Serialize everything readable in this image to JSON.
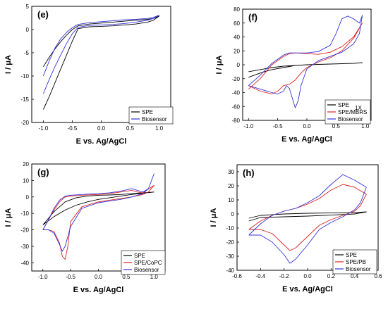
{
  "chart_data": [
    {
      "panel_label": "(e)",
      "type": "line",
      "xlabel": "E vs. Ag/AgCl",
      "ylabel": "I / μA",
      "xlim": [
        -1.2,
        1.2
      ],
      "ylim": [
        -20,
        5
      ],
      "xticks": [
        -1.0,
        -0.5,
        0.0,
        0.5,
        1.0
      ],
      "yticks": [
        -20,
        -15,
        -10,
        -5,
        0,
        5
      ],
      "xtick_labels": [
        "-1.0",
        "-0.5",
        "0.0",
        "0.5",
        "1.0"
      ],
      "ytick_labels": [
        "-20",
        "-15",
        "-10",
        "-5",
        "0",
        "5"
      ],
      "legend_position": "bottom-right",
      "series": [
        {
          "name": "SPE",
          "color": "#000000",
          "x": [
            -1.0,
            -0.9,
            -0.8,
            -0.7,
            -0.6,
            -0.5,
            -0.4,
            -0.2,
            0.0,
            0.2,
            0.4,
            0.6,
            0.8,
            0.9,
            1.0,
            0.9,
            0.8,
            0.6,
            0.4,
            0.2,
            0.0,
            -0.2,
            -0.4,
            -0.5,
            -0.6,
            -0.7,
            -0.8,
            -0.9,
            -1.0
          ],
          "y": [
            -17.2,
            -14.5,
            -11.5,
            -8.5,
            -5.5,
            -2.5,
            0.2,
            0.6,
            0.7,
            0.8,
            1.0,
            1.2,
            1.6,
            2.0,
            2.9,
            2.4,
            2.2,
            2.0,
            1.8,
            1.6,
            1.4,
            1.2,
            0.8,
            0.0,
            -1.2,
            -2.6,
            -4.2,
            -6.0,
            -8.0
          ]
        },
        {
          "name": "Biosensor",
          "color": "#3333dd",
          "x": [
            -1.0,
            -0.9,
            -0.8,
            -0.7,
            -0.6,
            -0.5,
            -0.4,
            -0.2,
            0.0,
            0.2,
            0.4,
            0.6,
            0.8,
            0.9,
            1.0,
            0.9,
            0.8,
            0.6,
            0.4,
            0.2,
            0.0,
            -0.2,
            -0.4,
            -0.5,
            -0.6,
            -0.7,
            -0.8,
            -0.9,
            -1.0
          ],
          "y": [
            -13.8,
            -10.8,
            -8.0,
            -5.5,
            -3.0,
            -0.9,
            0.5,
            0.9,
            1.0,
            1.1,
            1.3,
            1.6,
            2.0,
            2.4,
            3.1,
            2.6,
            2.4,
            2.2,
            2.1,
            1.9,
            1.7,
            1.5,
            1.1,
            0.4,
            -0.6,
            -2.0,
            -4.0,
            -6.8,
            -10.0
          ]
        }
      ]
    },
    {
      "panel_label": "(f)",
      "type": "line",
      "xlabel": "E vs. Ag/AgCl",
      "ylabel": "I / μA",
      "xlim": [
        -1.1,
        1.1
      ],
      "ylim": [
        -80,
        80
      ],
      "xticks": [
        -1.0,
        -0.5,
        0.0,
        0.5,
        1.0
      ],
      "yticks": [
        -80,
        -60,
        -40,
        -20,
        0,
        20,
        40,
        60,
        80
      ],
      "xtick_labels": [
        "-1.0",
        "-0.5",
        "0.0",
        "0.5",
        "1.0"
      ],
      "ytick_labels": [
        "-80",
        "-60",
        "-40",
        "-20",
        "0",
        "20",
        "40",
        "60",
        "80"
      ],
      "legend_position": "bottom-right",
      "annotation": "1X",
      "series": [
        {
          "name": "SPE",
          "color": "#000000",
          "x": [
            -1.0,
            -0.8,
            -0.6,
            -0.4,
            -0.2,
            0.0,
            0.2,
            0.4,
            0.6,
            0.8,
            0.95,
            0.8,
            0.6,
            0.4,
            0.2,
            0.0,
            -0.2,
            -0.4,
            -0.6,
            -0.8,
            -1.0
          ],
          "y": [
            -18,
            -12,
            -7,
            -4,
            -1,
            0,
            0.5,
            1,
            1.5,
            2,
            3,
            2,
            1.5,
            1,
            0.5,
            0,
            -1,
            -2,
            -4,
            -7,
            -10
          ]
        },
        {
          "name": "SPE/MBRS",
          "color": "#dd2222",
          "x": [
            -1.0,
            -0.8,
            -0.6,
            -0.4,
            -0.3,
            -0.2,
            0.0,
            0.2,
            0.4,
            0.6,
            0.8,
            0.95,
            0.8,
            0.6,
            0.4,
            0.2,
            0.0,
            -0.1,
            -0.2,
            -0.3,
            -0.4,
            -0.5,
            -0.6,
            -0.8,
            -1.0
          ],
          "y": [
            -35,
            -20,
            0,
            12,
            16,
            17,
            16,
            15,
            18,
            26,
            40,
            60,
            38,
            20,
            10,
            4,
            -4,
            -12,
            -22,
            -28,
            -30,
            -38,
            -42,
            -38,
            -30
          ]
        },
        {
          "name": "Biosensor",
          "color": "#3333dd",
          "x": [
            -1.0,
            -0.8,
            -0.6,
            -0.4,
            -0.3,
            -0.2,
            0.0,
            0.2,
            0.4,
            0.5,
            0.6,
            0.7,
            0.8,
            0.9,
            0.95,
            0.9,
            0.8,
            0.6,
            0.4,
            0.2,
            0.0,
            -0.1,
            -0.15,
            -0.2,
            -0.3,
            -0.35,
            -0.4,
            -0.5,
            -0.6,
            -0.8,
            -1.0
          ],
          "y": [
            -30,
            -15,
            2,
            14,
            17,
            17,
            17,
            19,
            28,
            45,
            66,
            70,
            66,
            60,
            71,
            45,
            30,
            18,
            12,
            6,
            -6,
            -30,
            -52,
            -62,
            -34,
            -30,
            -38,
            -42,
            -40,
            -35,
            -30
          ]
        }
      ]
    },
    {
      "panel_label": "(g)",
      "type": "line",
      "xlabel": "E vs. Ag/AgCl",
      "ylabel": "I / μA",
      "xlim": [
        -1.2,
        1.2
      ],
      "ylim": [
        -45,
        20
      ],
      "xticks": [
        -1.0,
        -0.5,
        0.0,
        0.5,
        1.0
      ],
      "yticks": [
        -40,
        -30,
        -20,
        -10,
        0,
        10,
        20
      ],
      "xtick_labels": [
        "-1.0",
        "-0.5",
        "0.0",
        "0.5",
        "1.0"
      ],
      "ytick_labels": [
        "-40",
        "-30",
        "-20",
        "-10",
        "0",
        "10",
        "20"
      ],
      "legend_position": "bottom-right",
      "series": [
        {
          "name": "SPE",
          "color": "#000000",
          "x": [
            -1.0,
            -0.8,
            -0.6,
            -0.4,
            -0.2,
            0.0,
            0.2,
            0.4,
            0.6,
            0.8,
            1.0,
            0.8,
            0.6,
            0.4,
            0.2,
            0.0,
            -0.2,
            -0.4,
            -0.6,
            -0.8,
            -1.0
          ],
          "y": [
            -17,
            -9,
            -3,
            -0.5,
            0.5,
            1,
            1.2,
            1.5,
            2,
            2.5,
            3,
            2.2,
            1.5,
            0.5,
            -0.5,
            -1.5,
            -3,
            -5,
            -8,
            -12,
            -17
          ]
        },
        {
          "name": "SPE/CoPC",
          "color": "#dd2222",
          "x": [
            -1.0,
            -0.9,
            -0.8,
            -0.7,
            -0.6,
            -0.5,
            -0.3,
            0.0,
            0.2,
            0.4,
            0.6,
            0.7,
            0.8,
            1.0,
            0.9,
            0.8,
            0.6,
            0.4,
            0.2,
            0.0,
            -0.3,
            -0.5,
            -0.55,
            -0.6,
            -0.65,
            -0.7,
            -0.8,
            -0.9,
            -1.0
          ],
          "y": [
            -20,
            -14,
            -8,
            -3,
            0,
            0.5,
            1,
            1.5,
            2,
            3,
            4,
            3,
            2.5,
            7,
            3,
            1.5,
            0,
            -1,
            -2,
            -3,
            -6,
            -15,
            -30,
            -38,
            -36,
            -28,
            -21,
            -20,
            -20
          ]
        },
        {
          "name": "Biosensor",
          "color": "#3333dd",
          "x": [
            -1.0,
            -0.9,
            -0.8,
            -0.7,
            -0.6,
            -0.5,
            -0.3,
            0.0,
            0.2,
            0.4,
            0.6,
            0.7,
            0.8,
            0.9,
            1.0,
            0.9,
            0.8,
            0.6,
            0.4,
            0.2,
            0.0,
            -0.3,
            -0.5,
            -0.6,
            -0.65,
            -0.7,
            -0.8,
            -0.9,
            -1.0
          ],
          "y": [
            -20,
            -14,
            -7,
            -2,
            0.5,
            1,
            1.5,
            2,
            2.5,
            3.5,
            5,
            4,
            3,
            5,
            14,
            5,
            2,
            0,
            -1.5,
            -2.5,
            -3.5,
            -7,
            -18,
            -30,
            -33,
            -29,
            -22,
            -20,
            -20
          ]
        }
      ]
    },
    {
      "panel_label": "(h)",
      "type": "line",
      "xlabel": "E vs. Ag/AgCl",
      "ylabel": "I / μA",
      "xlim": [
        -0.6,
        0.6
      ],
      "ylim": [
        -40,
        35
      ],
      "xticks": [
        -0.6,
        -0.4,
        -0.2,
        0.0,
        0.2,
        0.4,
        0.6
      ],
      "yticks": [
        -40,
        -30,
        -20,
        -10,
        0,
        10,
        20,
        30
      ],
      "xtick_labels": [
        "-0.6",
        "-0.4",
        "-0.2",
        "0.0",
        "0.2",
        "0.4",
        "0.6"
      ],
      "ytick_labels": [
        "-40",
        "-30",
        "-20",
        "-10",
        "0",
        "10",
        "20",
        "30"
      ],
      "legend_position": "bottom-right",
      "series": [
        {
          "name": "SPE",
          "color": "#000000",
          "x": [
            -0.5,
            -0.4,
            -0.2,
            0.0,
            0.2,
            0.4,
            0.5,
            0.4,
            0.2,
            0.0,
            -0.2,
            -0.4,
            -0.5
          ],
          "y": [
            -3,
            -1,
            0,
            0.5,
            0.8,
            1,
            1.5,
            0,
            -0.8,
            -1.5,
            -2,
            -2.5,
            -5
          ]
        },
        {
          "name": "SPE/PB",
          "color": "#dd2222",
          "x": [
            -0.5,
            -0.4,
            -0.3,
            -0.2,
            -0.1,
            0.0,
            0.1,
            0.2,
            0.3,
            0.4,
            0.5,
            0.45,
            0.4,
            0.3,
            0.2,
            0.1,
            0.0,
            -0.1,
            -0.15,
            -0.2,
            -0.3,
            -0.4,
            -0.5
          ],
          "y": [
            -11,
            -5,
            -1,
            2,
            4,
            7,
            11,
            17,
            21,
            19,
            14,
            6,
            2,
            -1,
            -4,
            -8,
            -16,
            -24,
            -26,
            -22,
            -14,
            -11,
            -11
          ]
        },
        {
          "name": "Biosensor",
          "color": "#3333dd",
          "x": [
            -0.5,
            -0.4,
            -0.3,
            -0.2,
            -0.1,
            0.0,
            0.1,
            0.2,
            0.3,
            0.4,
            0.5,
            0.45,
            0.4,
            0.3,
            0.2,
            0.1,
            0.0,
            -0.1,
            -0.15,
            -0.2,
            -0.3,
            -0.4,
            -0.5
          ],
          "y": [
            -15,
            -7,
            -1,
            2,
            4,
            8,
            13,
            21,
            28,
            24,
            19,
            8,
            3,
            -2,
            -6,
            -11,
            -22,
            -32,
            -35,
            -29,
            -20,
            -15,
            -15
          ]
        }
      ]
    }
  ]
}
